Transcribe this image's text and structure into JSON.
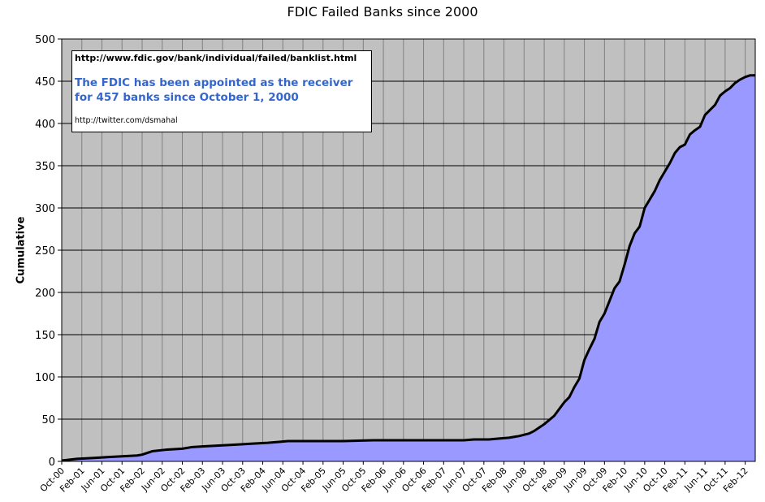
{
  "chart_data": {
    "type": "area",
    "title": "FDIC Failed Banks since 2000",
    "xlabel": "",
    "ylabel": "Cumulative",
    "ylim": [
      0,
      500
    ],
    "yticks": [
      0,
      50,
      100,
      150,
      200,
      250,
      300,
      350,
      400,
      450,
      500
    ],
    "xlim": [
      "2000-10",
      "2012-04"
    ],
    "xtick_labels": [
      {
        "month": "2000-10",
        "label": "Oct-00"
      },
      {
        "month": "2001-02",
        "label": "Feb-01"
      },
      {
        "month": "2001-06",
        "label": "Jun-01"
      },
      {
        "month": "2001-10",
        "label": "Oct-01"
      },
      {
        "month": "2002-02",
        "label": "Feb-02"
      },
      {
        "month": "2002-06",
        "label": "Jun-02"
      },
      {
        "month": "2002-10",
        "label": "Oct-02"
      },
      {
        "month": "2003-02",
        "label": "Feb-03"
      },
      {
        "month": "2003-06",
        "label": "Jun-03"
      },
      {
        "month": "2003-10",
        "label": "Oct-03"
      },
      {
        "month": "2004-02",
        "label": "Feb-04"
      },
      {
        "month": "2004-06",
        "label": "Jun-04"
      },
      {
        "month": "2004-10",
        "label": "Oct-04"
      },
      {
        "month": "2005-02",
        "label": "Feb-05"
      },
      {
        "month": "2005-06",
        "label": "Jun-05"
      },
      {
        "month": "2005-10",
        "label": "Oct-05"
      },
      {
        "month": "2006-02",
        "label": "Feb-06"
      },
      {
        "month": "2006-06",
        "label": "Jun-06"
      },
      {
        "month": "2006-10",
        "label": "Oct-06"
      },
      {
        "month": "2007-02",
        "label": "Feb-07"
      },
      {
        "month": "2007-06",
        "label": "Jun-07"
      },
      {
        "month": "2007-10",
        "label": "Oct-07"
      },
      {
        "month": "2008-02",
        "label": "Feb-08"
      },
      {
        "month": "2008-06",
        "label": "Jun-08"
      },
      {
        "month": "2008-10",
        "label": "Oct-08"
      },
      {
        "month": "2009-02",
        "label": "Feb-09"
      },
      {
        "month": "2009-06",
        "label": "Jun-09"
      },
      {
        "month": "2009-10",
        "label": "Oct-09"
      },
      {
        "month": "2010-02",
        "label": "Feb-10"
      },
      {
        "month": "2010-06",
        "label": "Jun-10"
      },
      {
        "month": "2010-10",
        "label": "Oct-10"
      },
      {
        "month": "2011-02",
        "label": "Feb-11"
      },
      {
        "month": "2011-06",
        "label": "Jun-11"
      },
      {
        "month": "2011-10",
        "label": "Oct-11"
      },
      {
        "month": "2012-02",
        "label": "Feb-12"
      }
    ],
    "grid": true,
    "series": [
      {
        "color": "#9999ff",
        "x": [
          "2000-10",
          "2001-01",
          "2001-04",
          "2001-07",
          "2001-10",
          "2002-01",
          "2002-02",
          "2002-04",
          "2002-07",
          "2002-10",
          "2002-12",
          "2003-03",
          "2003-06",
          "2003-09",
          "2003-12",
          "2004-03",
          "2004-05",
          "2004-07",
          "2004-12",
          "2005-06",
          "2005-12",
          "2006-06",
          "2006-12",
          "2007-06",
          "2007-08",
          "2007-11",
          "2008-01",
          "2008-03",
          "2008-05",
          "2008-07",
          "2008-08",
          "2008-09",
          "2008-10",
          "2008-11",
          "2008-12",
          "2009-01",
          "2009-02",
          "2009-03",
          "2009-04",
          "2009-05",
          "2009-06",
          "2009-07",
          "2009-08",
          "2009-09",
          "2009-10",
          "2009-11",
          "2009-12",
          "2010-01",
          "2010-02",
          "2010-03",
          "2010-04",
          "2010-05",
          "2010-06",
          "2010-07",
          "2010-08",
          "2010-09",
          "2010-10",
          "2010-11",
          "2010-12",
          "2011-01",
          "2011-02",
          "2011-03",
          "2011-04",
          "2011-05",
          "2011-06",
          "2011-07",
          "2011-08",
          "2011-09",
          "2011-10",
          "2011-11",
          "2011-12",
          "2012-01",
          "2012-02",
          "2012-03",
          "2012-04"
        ],
        "y": [
          1,
          3,
          4,
          5,
          6,
          7,
          8,
          12,
          14,
          15,
          17,
          18,
          19,
          20,
          21,
          22,
          23,
          24,
          24,
          24,
          25,
          25,
          25,
          25,
          26,
          26,
          27,
          28,
          30,
          33,
          36,
          40,
          44,
          49,
          54,
          62,
          70,
          76,
          88,
          98,
          120,
          133,
          145,
          165,
          175,
          190,
          205,
          213,
          233,
          255,
          270,
          278,
          300,
          310,
          320,
          333,
          343,
          353,
          365,
          372,
          375,
          387,
          392,
          396,
          410,
          416,
          422,
          433,
          438,
          442,
          448,
          452,
          455,
          457,
          457
        ]
      }
    ]
  },
  "annotation": {
    "url": "http://www.fdic.gov/bank/individual/failed/banklist.html",
    "message": "The FDIC has been appointed as the receiver for 457 banks since October 1, 2000",
    "twitter": "http://twitter.com/dsmahal"
  }
}
